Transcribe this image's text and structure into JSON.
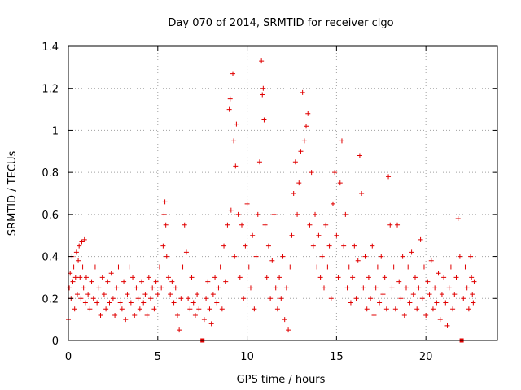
{
  "chart_data": {
    "type": "scatter",
    "title": "Day 070 of 2014, SRMTID for receiver clgo",
    "xlabel": "GPS time / hours",
    "ylabel": "SRMTID / TECUs",
    "xlim": [
      0,
      24
    ],
    "ylim": [
      0,
      1.4
    ],
    "xticks": [
      0,
      5,
      10,
      15,
      20
    ],
    "xtick_labels": [
      "0",
      "5",
      "10",
      "15",
      "20"
    ],
    "yticks": [
      0,
      0.2,
      0.4,
      0.6,
      0.8,
      1,
      1.2,
      1.4
    ],
    "ytick_labels": [
      "0",
      "0.2",
      "0.4",
      "0.6",
      "0.8",
      "1",
      "1.2",
      "1.4"
    ],
    "grid": true,
    "marker": "+",
    "color": "#e00000",
    "gap_markers_x": [
      7.5,
      22.0
    ],
    "series": [
      {
        "name": "SRMTID",
        "points": [
          [
            0.0,
            0.1
          ],
          [
            0.05,
            0.25
          ],
          [
            0.1,
            0.32
          ],
          [
            0.15,
            0.2
          ],
          [
            0.2,
            0.4
          ],
          [
            0.25,
            0.28
          ],
          [
            0.3,
            0.35
          ],
          [
            0.35,
            0.15
          ],
          [
            0.4,
            0.3
          ],
          [
            0.45,
            0.42
          ],
          [
            0.5,
            0.22
          ],
          [
            0.55,
            0.38
          ],
          [
            0.6,
            0.45
          ],
          [
            0.65,
            0.3
          ],
          [
            0.7,
            0.2
          ],
          [
            0.75,
            0.47
          ],
          [
            0.8,
            0.35
          ],
          [
            0.85,
            0.25
          ],
          [
            0.9,
            0.48
          ],
          [
            0.95,
            0.18
          ],
          [
            1.0,
            0.3
          ],
          [
            1.1,
            0.22
          ],
          [
            1.2,
            0.15
          ],
          [
            1.3,
            0.28
          ],
          [
            1.4,
            0.2
          ],
          [
            1.5,
            0.35
          ],
          [
            1.6,
            0.18
          ],
          [
            1.7,
            0.25
          ],
          [
            1.8,
            0.12
          ],
          [
            1.9,
            0.3
          ],
          [
            2.0,
            0.22
          ],
          [
            2.1,
            0.15
          ],
          [
            2.2,
            0.28
          ],
          [
            2.3,
            0.18
          ],
          [
            2.4,
            0.32
          ],
          [
            2.5,
            0.2
          ],
          [
            2.6,
            0.12
          ],
          [
            2.7,
            0.25
          ],
          [
            2.8,
            0.35
          ],
          [
            2.9,
            0.18
          ],
          [
            3.0,
            0.15
          ],
          [
            3.1,
            0.28
          ],
          [
            3.2,
            0.1
          ],
          [
            3.3,
            0.22
          ],
          [
            3.4,
            0.35
          ],
          [
            3.5,
            0.18
          ],
          [
            3.6,
            0.3
          ],
          [
            3.7,
            0.12
          ],
          [
            3.8,
            0.25
          ],
          [
            3.9,
            0.2
          ],
          [
            4.0,
            0.15
          ],
          [
            4.1,
            0.28
          ],
          [
            4.2,
            0.18
          ],
          [
            4.3,
            0.22
          ],
          [
            4.4,
            0.12
          ],
          [
            4.5,
            0.3
          ],
          [
            4.6,
            0.2
          ],
          [
            4.7,
            0.25
          ],
          [
            4.8,
            0.15
          ],
          [
            4.9,
            0.28
          ],
          [
            5.0,
            0.22
          ],
          [
            5.1,
            0.35
          ],
          [
            5.2,
            0.25
          ],
          [
            5.3,
            0.45
          ],
          [
            5.35,
            0.6
          ],
          [
            5.4,
            0.66
          ],
          [
            5.45,
            0.55
          ],
          [
            5.5,
            0.4
          ],
          [
            5.6,
            0.3
          ],
          [
            5.7,
            0.22
          ],
          [
            5.8,
            0.28
          ],
          [
            5.9,
            0.18
          ],
          [
            6.0,
            0.25
          ],
          [
            6.1,
            0.12
          ],
          [
            6.2,
            0.05
          ],
          [
            6.3,
            0.2
          ],
          [
            6.4,
            0.35
          ],
          [
            6.5,
            0.55
          ],
          [
            6.6,
            0.42
          ],
          [
            6.7,
            0.2
          ],
          [
            6.8,
            0.15
          ],
          [
            6.9,
            0.3
          ],
          [
            7.0,
            0.18
          ],
          [
            7.1,
            0.12
          ],
          [
            7.2,
            0.22
          ],
          [
            7.3,
            0.15
          ],
          [
            7.6,
            0.1
          ],
          [
            7.7,
            0.2
          ],
          [
            7.8,
            0.28
          ],
          [
            7.9,
            0.15
          ],
          [
            8.0,
            0.08
          ],
          [
            8.1,
            0.22
          ],
          [
            8.2,
            0.3
          ],
          [
            8.3,
            0.18
          ],
          [
            8.4,
            0.25
          ],
          [
            8.5,
            0.35
          ],
          [
            8.6,
            0.15
          ],
          [
            8.7,
            0.45
          ],
          [
            8.8,
            0.28
          ],
          [
            8.9,
            0.55
          ],
          [
            9.0,
            1.1
          ],
          [
            9.05,
            1.15
          ],
          [
            9.1,
            0.62
          ],
          [
            9.2,
            1.27
          ],
          [
            9.25,
            0.95
          ],
          [
            9.3,
            0.4
          ],
          [
            9.35,
            0.83
          ],
          [
            9.4,
            1.03
          ],
          [
            9.5,
            0.6
          ],
          [
            9.6,
            0.3
          ],
          [
            9.7,
            0.55
          ],
          [
            9.8,
            0.2
          ],
          [
            9.9,
            0.45
          ],
          [
            10.0,
            0.65
          ],
          [
            10.1,
            0.35
          ],
          [
            10.2,
            0.25
          ],
          [
            10.3,
            0.5
          ],
          [
            10.4,
            0.15
          ],
          [
            10.5,
            0.4
          ],
          [
            10.6,
            0.6
          ],
          [
            10.7,
            0.85
          ],
          [
            10.8,
            1.33
          ],
          [
            10.85,
            1.17
          ],
          [
            10.9,
            1.2
          ],
          [
            10.95,
            1.05
          ],
          [
            11.0,
            0.55
          ],
          [
            11.1,
            0.3
          ],
          [
            11.2,
            0.45
          ],
          [
            11.3,
            0.2
          ],
          [
            11.4,
            0.38
          ],
          [
            11.5,
            0.6
          ],
          [
            11.6,
            0.25
          ],
          [
            11.7,
            0.15
          ],
          [
            11.8,
            0.3
          ],
          [
            11.9,
            0.2
          ],
          [
            12.0,
            0.4
          ],
          [
            12.1,
            0.1
          ],
          [
            12.2,
            0.25
          ],
          [
            12.3,
            0.05
          ],
          [
            12.4,
            0.35
          ],
          [
            12.5,
            0.5
          ],
          [
            12.6,
            0.7
          ],
          [
            12.7,
            0.85
          ],
          [
            12.8,
            0.6
          ],
          [
            12.9,
            0.75
          ],
          [
            13.0,
            0.9
          ],
          [
            13.1,
            1.18
          ],
          [
            13.2,
            0.95
          ],
          [
            13.3,
            1.02
          ],
          [
            13.4,
            1.08
          ],
          [
            13.5,
            0.55
          ],
          [
            13.6,
            0.8
          ],
          [
            13.7,
            0.45
          ],
          [
            13.8,
            0.6
          ],
          [
            13.9,
            0.35
          ],
          [
            14.0,
            0.5
          ],
          [
            14.1,
            0.3
          ],
          [
            14.2,
            0.4
          ],
          [
            14.3,
            0.25
          ],
          [
            14.4,
            0.55
          ],
          [
            14.5,
            0.35
          ],
          [
            14.6,
            0.45
          ],
          [
            14.7,
            0.2
          ],
          [
            14.8,
            0.65
          ],
          [
            14.9,
            0.8
          ],
          [
            15.0,
            0.5
          ],
          [
            15.1,
            0.3
          ],
          [
            15.2,
            0.75
          ],
          [
            15.3,
            0.95
          ],
          [
            15.4,
            0.45
          ],
          [
            15.5,
            0.6
          ],
          [
            15.6,
            0.25
          ],
          [
            15.7,
            0.35
          ],
          [
            15.8,
            0.18
          ],
          [
            15.9,
            0.3
          ],
          [
            16.0,
            0.45
          ],
          [
            16.1,
            0.2
          ],
          [
            16.2,
            0.38
          ],
          [
            16.3,
            0.88
          ],
          [
            16.4,
            0.7
          ],
          [
            16.5,
            0.25
          ],
          [
            16.6,
            0.4
          ],
          [
            16.7,
            0.15
          ],
          [
            16.8,
            0.3
          ],
          [
            16.9,
            0.2
          ],
          [
            17.0,
            0.45
          ],
          [
            17.1,
            0.12
          ],
          [
            17.2,
            0.25
          ],
          [
            17.3,
            0.35
          ],
          [
            17.4,
            0.18
          ],
          [
            17.5,
            0.4
          ],
          [
            17.6,
            0.22
          ],
          [
            17.7,
            0.3
          ],
          [
            17.8,
            0.15
          ],
          [
            17.9,
            0.78
          ],
          [
            18.0,
            0.55
          ],
          [
            18.1,
            0.25
          ],
          [
            18.2,
            0.35
          ],
          [
            18.3,
            0.15
          ],
          [
            18.4,
            0.55
          ],
          [
            18.5,
            0.28
          ],
          [
            18.6,
            0.2
          ],
          [
            18.7,
            0.4
          ],
          [
            18.8,
            0.12
          ],
          [
            18.9,
            0.25
          ],
          [
            19.0,
            0.35
          ],
          [
            19.1,
            0.18
          ],
          [
            19.2,
            0.42
          ],
          [
            19.3,
            0.22
          ],
          [
            19.4,
            0.3
          ],
          [
            19.5,
            0.15
          ],
          [
            19.6,
            0.25
          ],
          [
            19.7,
            0.48
          ],
          [
            19.8,
            0.2
          ],
          [
            19.9,
            0.35
          ],
          [
            20.0,
            0.12
          ],
          [
            20.1,
            0.28
          ],
          [
            20.2,
            0.22
          ],
          [
            20.3,
            0.38
          ],
          [
            20.4,
            0.15
          ],
          [
            20.5,
            0.25
          ],
          [
            20.6,
            0.18
          ],
          [
            20.7,
            0.32
          ],
          [
            20.8,
            0.1
          ],
          [
            20.9,
            0.22
          ],
          [
            21.0,
            0.3
          ],
          [
            21.1,
            0.18
          ],
          [
            21.2,
            0.07
          ],
          [
            21.3,
            0.25
          ],
          [
            21.4,
            0.35
          ],
          [
            21.5,
            0.15
          ],
          [
            21.6,
            0.22
          ],
          [
            21.7,
            0.3
          ],
          [
            21.8,
            0.58
          ],
          [
            21.9,
            0.4
          ],
          [
            22.1,
            0.2
          ],
          [
            22.2,
            0.35
          ],
          [
            22.3,
            0.25
          ],
          [
            22.4,
            0.15
          ],
          [
            22.5,
            0.4
          ],
          [
            22.55,
            0.3
          ],
          [
            22.6,
            0.22
          ],
          [
            22.65,
            0.18
          ],
          [
            22.7,
            0.28
          ]
        ]
      }
    ]
  }
}
